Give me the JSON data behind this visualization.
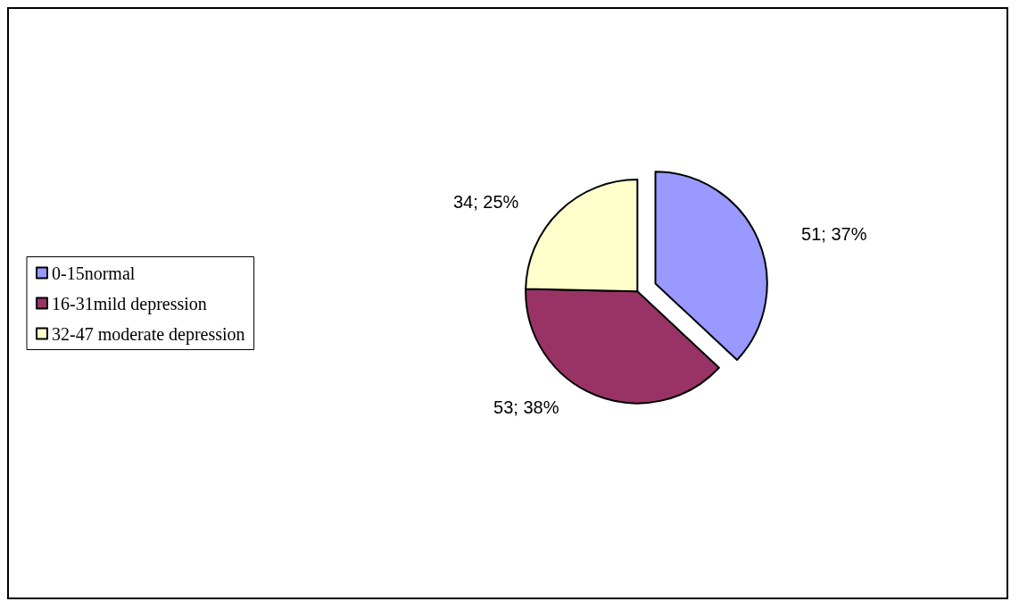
{
  "chart_data": {
    "type": "pie",
    "categories": [
      "0-15normal",
      "16-31mild depression",
      "32-47 moderate depression"
    ],
    "values": [
      51,
      53,
      34
    ],
    "colors": [
      "#9999ff",
      "#993366",
      "#ffffcc"
    ],
    "value_labels": [
      "51; 37%",
      "53; 38%",
      "34; 25%"
    ],
    "legend": "left"
  }
}
